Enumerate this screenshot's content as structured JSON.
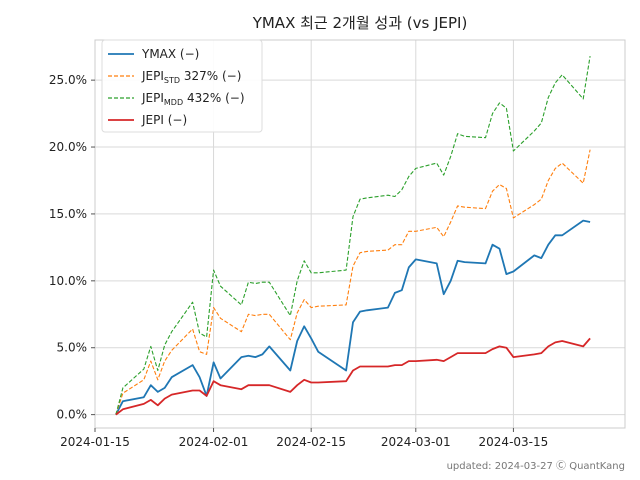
{
  "chart_data": {
    "type": "line",
    "title": "YMAX 최근 2개월 성과 (vs JEPI)",
    "footer": "updated: 2024-03-27 Ⓒ QuantKang",
    "xlim": [
      "2024-01-15",
      "2024-03-31"
    ],
    "ylim": [
      -0.01,
      0.28
    ],
    "x_ticks": [
      "2024-01-15",
      "2024-02-01",
      "2024-02-15",
      "2024-03-01",
      "2024-03-15"
    ],
    "y_ticks": [
      0.0,
      0.05,
      0.1,
      0.15,
      0.2,
      0.25
    ],
    "y_tick_labels": [
      "0.0%",
      "5.0%",
      "10.0%",
      "15.0%",
      "20.0%",
      "25.0%"
    ],
    "grid": true,
    "legend_position": "top-left",
    "x": [
      "2024-01-18",
      "2024-01-19",
      "2024-01-22",
      "2024-01-23",
      "2024-01-24",
      "2024-01-25",
      "2024-01-26",
      "2024-01-29",
      "2024-01-30",
      "2024-01-31",
      "2024-02-01",
      "2024-02-02",
      "2024-02-05",
      "2024-02-06",
      "2024-02-07",
      "2024-02-08",
      "2024-02-09",
      "2024-02-12",
      "2024-02-13",
      "2024-02-14",
      "2024-02-15",
      "2024-02-16",
      "2024-02-20",
      "2024-02-21",
      "2024-02-22",
      "2024-02-23",
      "2024-02-26",
      "2024-02-27",
      "2024-02-28",
      "2024-02-29",
      "2024-03-01",
      "2024-03-04",
      "2024-03-05",
      "2024-03-06",
      "2024-03-07",
      "2024-03-08",
      "2024-03-11",
      "2024-03-12",
      "2024-03-13",
      "2024-03-14",
      "2024-03-15",
      "2024-03-18",
      "2024-03-19",
      "2024-03-20",
      "2024-03-21",
      "2024-03-22",
      "2024-03-25",
      "2024-03-26"
    ],
    "series": [
      {
        "name": "YMAX (−)",
        "color": "#1f77b4",
        "dash": "solid",
        "values": [
          0.0,
          0.01,
          0.013,
          0.022,
          0.017,
          0.02,
          0.028,
          0.037,
          0.028,
          0.014,
          0.039,
          0.027,
          0.043,
          0.044,
          0.043,
          0.045,
          0.051,
          0.033,
          0.055,
          0.066,
          0.057,
          0.047,
          0.033,
          0.069,
          0.077,
          0.078,
          0.08,
          0.091,
          0.093,
          0.11,
          0.116,
          0.113,
          0.09,
          0.1,
          0.115,
          0.114,
          0.113,
          0.127,
          0.124,
          0.105,
          0.107,
          0.119,
          0.117,
          0.127,
          0.134,
          0.134,
          0.145,
          0.144
        ]
      },
      {
        "name": "JEPISTD 327% (−)",
        "color": "#ff7f0e",
        "dash": "dashed",
        "values": [
          0.0,
          0.016,
          0.026,
          0.04,
          0.026,
          0.04,
          0.048,
          0.064,
          0.047,
          0.045,
          0.08,
          0.072,
          0.062,
          0.075,
          0.074,
          0.075,
          0.075,
          0.056,
          0.076,
          0.086,
          0.08,
          0.081,
          0.082,
          0.111,
          0.121,
          0.122,
          0.123,
          0.127,
          0.127,
          0.137,
          0.137,
          0.14,
          0.133,
          0.144,
          0.156,
          0.155,
          0.154,
          0.167,
          0.172,
          0.169,
          0.147,
          0.157,
          0.161,
          0.175,
          0.184,
          0.188,
          0.173,
          0.198
        ]
      },
      {
        "name": "JEPIMDD 432% (−)",
        "color": "#2ca02c",
        "dash": "dashed",
        "values": [
          0.0,
          0.02,
          0.034,
          0.051,
          0.033,
          0.052,
          0.062,
          0.084,
          0.061,
          0.058,
          0.108,
          0.096,
          0.082,
          0.099,
          0.098,
          0.099,
          0.099,
          0.074,
          0.1,
          0.115,
          0.106,
          0.106,
          0.108,
          0.148,
          0.161,
          0.162,
          0.164,
          0.163,
          0.168,
          0.178,
          0.184,
          0.188,
          0.179,
          0.193,
          0.21,
          0.208,
          0.207,
          0.225,
          0.233,
          0.229,
          0.197,
          0.212,
          0.218,
          0.237,
          0.248,
          0.254,
          0.236,
          0.268
        ]
      },
      {
        "name": "JEPI (−)",
        "color": "#d62728",
        "dash": "solid",
        "values": [
          0.0,
          0.004,
          0.008,
          0.011,
          0.007,
          0.012,
          0.015,
          0.018,
          0.018,
          0.014,
          0.025,
          0.022,
          0.019,
          0.022,
          0.022,
          0.022,
          0.022,
          0.017,
          0.022,
          0.026,
          0.024,
          0.024,
          0.025,
          0.033,
          0.036,
          0.036,
          0.036,
          0.037,
          0.037,
          0.04,
          0.04,
          0.041,
          0.04,
          0.043,
          0.046,
          0.046,
          0.046,
          0.049,
          0.051,
          0.05,
          0.043,
          0.045,
          0.046,
          0.051,
          0.054,
          0.055,
          0.051,
          0.057
        ]
      }
    ]
  }
}
